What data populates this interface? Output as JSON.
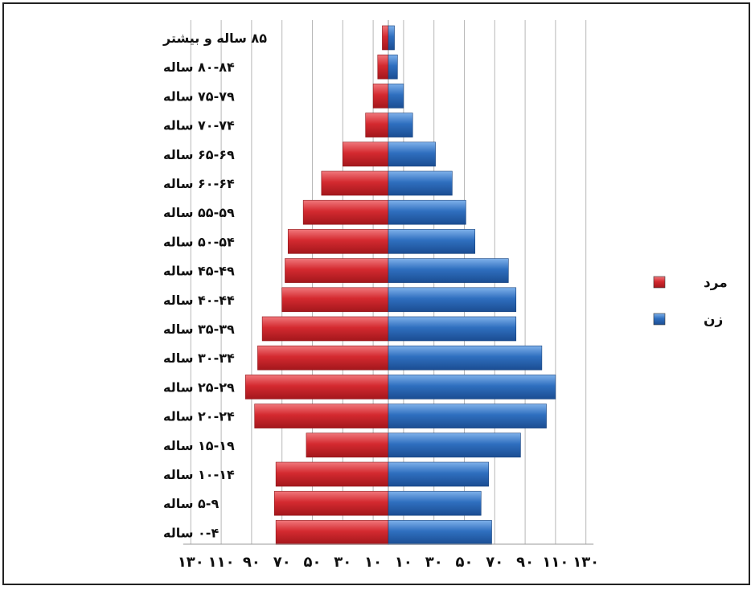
{
  "chart_data": {
    "type": "bar",
    "orientation": "horizontal",
    "layout": "population-pyramid",
    "categories": [
      "۸۵ ساله و بیشتر",
      "۸۰-۸۴ ساله",
      "۷۵-۷۹ ساله",
      "۷۰-۷۴ ساله",
      "۶۵-۶۹ ساله",
      "۶۰-۶۴ ساله",
      "۵۵-۵۹ ساله",
      "۵۰-۵۴ ساله",
      "۴۵-۴۹ ساله",
      "۴۰-۴۴ ساله",
      "۳۵-۳۹ ساله",
      "۳۰-۳۴ ساله",
      "۲۵-۲۹ ساله",
      "۲۰-۲۴ ساله",
      "۱۵-۱۹ ساله",
      "۱۰-۱۴ ساله",
      "۵-۹ ساله",
      "۰-۴ ساله"
    ],
    "series": [
      {
        "name": "مرد",
        "color": "#d42a30",
        "side": "left",
        "values": [
          4,
          7,
          10,
          15,
          30,
          44,
          56,
          66,
          68,
          70,
          83,
          86,
          94,
          88,
          54,
          74,
          75,
          74
        ]
      },
      {
        "name": "زن",
        "color": "#2f6fbf",
        "side": "right",
        "values": [
          4,
          6,
          10,
          16,
          31,
          42,
          51,
          57,
          79,
          84,
          84,
          101,
          110,
          104,
          87,
          66,
          61,
          68
        ]
      }
    ],
    "x_ticks_left": [
      "۱۳۰",
      "۱۱۰",
      "۹۰",
      "۷۰",
      "۵۰",
      "۳۰",
      "۱۰"
    ],
    "x_ticks_right": [
      "۱۰",
      "۳۰",
      "۵۰",
      "۷۰",
      "۹۰",
      "۱۱۰",
      "۱۳۰"
    ],
    "x_tick_values": [
      130,
      110,
      90,
      70,
      50,
      30,
      10
    ],
    "xlim": [
      0,
      135
    ],
    "grid": true,
    "legend_position": "right",
    "title": "",
    "xlabel": "",
    "ylabel": ""
  }
}
